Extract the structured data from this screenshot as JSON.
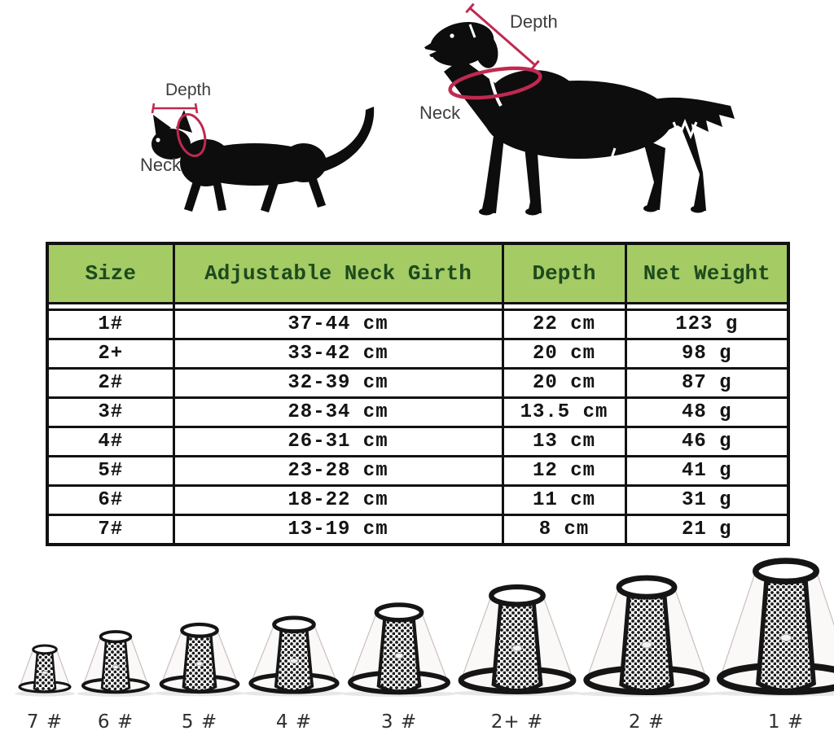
{
  "figure": {
    "cat": {
      "depth_label": "Depth",
      "neck_label": "Neck"
    },
    "dog": {
      "depth_label": "Depth",
      "neck_label": "Neck"
    }
  },
  "chart_data": {
    "type": "table",
    "columns": [
      "Size",
      "Adjustable Neck Girth",
      "Depth",
      "Net Weight"
    ],
    "rows": [
      [
        "1#",
        "37-44 cm",
        "22 cm",
        "123 g"
      ],
      [
        "2+",
        "33-42 cm",
        "20 cm",
        "98 g"
      ],
      [
        "2#",
        "32-39 cm",
        "20 cm",
        "87 g"
      ],
      [
        "3#",
        "28-34 cm",
        "13.5 cm",
        "48 g"
      ],
      [
        "4#",
        "26-31 cm",
        "13 cm",
        "46 g"
      ],
      [
        "5#",
        "23-28 cm",
        "12 cm",
        "41 g"
      ],
      [
        "6#",
        "18-22 cm",
        "11 cm",
        "31 g"
      ],
      [
        "7#",
        "13-19 cm",
        "8 cm",
        "21 g"
      ]
    ]
  },
  "cones": [
    {
      "label": "7 #"
    },
    {
      "label": "6 #"
    },
    {
      "label": "5 #"
    },
    {
      "label": "4 #"
    },
    {
      "label": "3 #"
    },
    {
      "label": "2+ #"
    },
    {
      "label": "2 #"
    },
    {
      "label": "1 #"
    }
  ],
  "colors": {
    "header_bg": "#a5cb65",
    "header_text": "#1d4a1d",
    "annotation_red": "#bf2950",
    "silhouette": "#0d0d0d"
  }
}
